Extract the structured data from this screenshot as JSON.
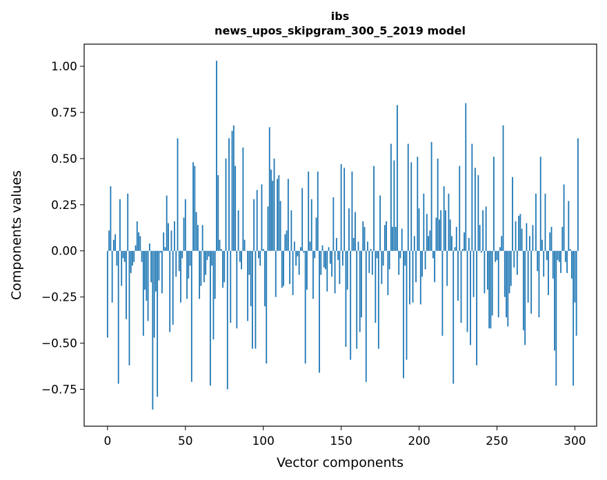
{
  "chart_data": {
    "type": "bar",
    "title": "ibs",
    "subtitle": "news_upos_skipgram_300_5_2019 model",
    "xlabel": "Vector components",
    "ylabel": "Components values",
    "xlim": [
      -15,
      314
    ],
    "ylim": [
      -0.95,
      1.12
    ],
    "xticks": [
      0,
      50,
      100,
      150,
      200,
      250,
      300
    ],
    "xtick_labels": [
      "0",
      "50",
      "100",
      "150",
      "200",
      "250",
      "300"
    ],
    "yticks": [
      1.0,
      0.75,
      0.5,
      0.25,
      0.0,
      -0.25,
      -0.5,
      -0.75
    ],
    "ytick_labels": [
      "1.00",
      "0.75",
      "0.50",
      "0.25",
      "0.00",
      "−0.25",
      "−0.50",
      "−0.75"
    ],
    "bar_color": "#1f77b4",
    "values": [
      -0.47,
      0.11,
      0.35,
      -0.28,
      0.06,
      0.09,
      -0.08,
      -0.72,
      0.28,
      -0.19,
      -0.04,
      -0.06,
      -0.37,
      0.31,
      -0.62,
      -0.12,
      -0.08,
      -0.06,
      0.03,
      0.16,
      0.1,
      0.08,
      -0.06,
      -0.46,
      -0.21,
      -0.27,
      -0.38,
      0.04,
      -0.17,
      -0.86,
      -0.47,
      -0.22,
      -0.79,
      -0.16,
      -0.01,
      -0.23,
      0.1,
      0.02,
      0.3,
      0.15,
      -0.44,
      0.11,
      -0.4,
      0.16,
      -0.14,
      0.61,
      -0.11,
      -0.28,
      -0.04,
      0.18,
      0.28,
      -0.26,
      -0.15,
      -0.08,
      -0.71,
      0.48,
      0.46,
      0.21,
      0.14,
      -0.26,
      -0.19,
      0.14,
      -0.17,
      -0.13,
      -0.05,
      -0.03,
      -0.73,
      -0.08,
      -0.48,
      -0.26,
      1.03,
      0.41,
      0.06,
      0.01,
      -0.2,
      -0.17,
      0.5,
      -0.75,
      0.61,
      -0.39,
      0.65,
      0.68,
      0.46,
      -0.42,
      0.22,
      -0.06,
      -0.1,
      0.56,
      0.06,
      0.0,
      -0.38,
      -0.13,
      -0.3,
      -0.53,
      0.28,
      -0.53,
      0.33,
      -0.04,
      -0.08,
      0.36,
      0.01,
      -0.3,
      -0.61,
      0.24,
      0.67,
      0.44,
      0.38,
      0.5,
      -0.25,
      0.39,
      0.41,
      0.27,
      -0.2,
      -0.19,
      0.09,
      0.11,
      0.39,
      -0.18,
      0.22,
      -0.24,
      0.05,
      -0.08,
      -0.03,
      -0.13,
      0.02,
      0.34,
      -0.01,
      -0.61,
      -0.21,
      0.43,
      0.05,
      0.28,
      -0.26,
      -0.04,
      0.18,
      0.43,
      -0.66,
      -0.13,
      0.03,
      -0.09,
      -0.1,
      -0.22,
      0.02,
      -0.07,
      -0.14,
      0.29,
      -0.23,
      0.07,
      -0.05,
      -0.18,
      0.47,
      -0.08,
      0.45,
      -0.52,
      -0.21,
      0.23,
      -0.59,
      0.43,
      0.07,
      0.21,
      -0.53,
      0.05,
      -0.44,
      -0.36,
      0.16,
      0.13,
      -0.71,
      0.05,
      -0.12,
      0.01,
      -0.13,
      0.46,
      -0.39,
      -0.04,
      -0.53,
      0.3,
      -0.18,
      -0.08,
      0.14,
      0.16,
      -0.24,
      -0.1,
      0.58,
      0.13,
      0.49,
      0.13,
      0.79,
      -0.13,
      -0.04,
      0.12,
      -0.69,
      -0.08,
      -0.59,
      0.58,
      -0.29,
      0.48,
      -0.28,
      0.08,
      -0.17,
      0.51,
      0.23,
      -0.29,
      -0.14,
      0.31,
      -0.1,
      0.2,
      0.08,
      0.11,
      0.59,
      -0.04,
      -0.17,
      0.18,
      0.5,
      0.17,
      0.22,
      -0.46,
      0.35,
      0.22,
      -0.19,
      0.31,
      0.17,
      0.08,
      -0.72,
      0.02,
      0.13,
      -0.27,
      0.46,
      -0.39,
      0.01,
      0.1,
      0.8,
      -0.44,
      0.07,
      -0.51,
      0.58,
      -0.25,
      0.45,
      -0.62,
      0.41,
      0.14,
      -0.01,
      0.22,
      -0.23,
      0.24,
      -0.21,
      -0.42,
      -0.42,
      -0.35,
      0.51,
      -0.06,
      -0.05,
      -0.36,
      0.02,
      0.08,
      0.68,
      -0.25,
      -0.36,
      -0.41,
      -0.23,
      -0.19,
      0.4,
      -0.09,
      0.16,
      -0.13,
      0.19,
      0.2,
      0.12,
      -0.43,
      -0.51,
      0.15,
      -0.28,
      0.08,
      -0.34,
      0.14,
      0.0,
      0.31,
      -0.11,
      -0.36,
      0.51,
      0.06,
      -0.14,
      0.31,
      -0.05,
      -0.24,
      0.1,
      0.13,
      -0.15,
      -0.54,
      -0.73,
      -0.05,
      -0.06,
      -0.12,
      0.13,
      0.36,
      -0.06,
      -0.12,
      0.27,
      0.01,
      -0.15,
      -0.73,
      -0.28,
      -0.46,
      0.61
    ]
  }
}
